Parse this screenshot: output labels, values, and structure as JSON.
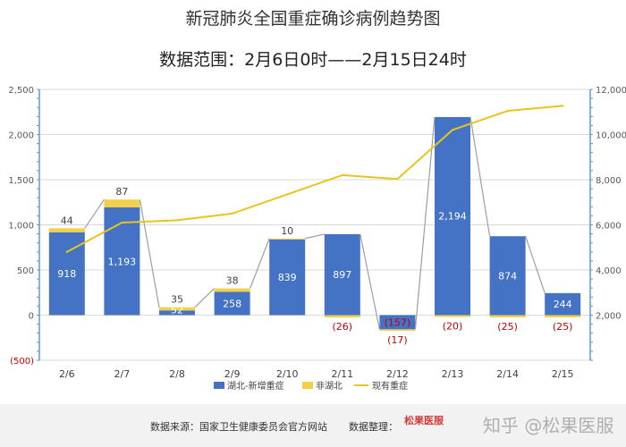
{
  "page": {
    "title": "新冠肺炎全国重症确诊病例趋势图",
    "subtitle": "数据范围：2月6日0时——2月15日24时",
    "footer": {
      "source": "数据来源：国家卫生健康委员会官方网站",
      "compiled_by": "数据整理：",
      "logo_text": "松果医服",
      "watermark": "知乎 @松果医服"
    }
  },
  "chart_data": {
    "type": "bar",
    "categories": [
      "2/6",
      "2/7",
      "2/8",
      "2/9",
      "2/10",
      "2/11",
      "2/12",
      "2/13",
      "2/14",
      "2/15"
    ],
    "series": [
      {
        "name": "湖北-新增重症",
        "type": "bar",
        "axis": "left",
        "color": "#4472c4",
        "values": [
          918,
          1193,
          52,
          258,
          839,
          897,
          -157,
          2194,
          874,
          244
        ],
        "labels": [
          "918",
          "1,193",
          "52",
          "258",
          "839",
          "897",
          "(157)",
          "2,194",
          "874",
          "244"
        ]
      },
      {
        "name": "非湖北",
        "type": "bar",
        "axis": "left",
        "color": "#f4d04a",
        "stacked": true,
        "values": [
          44,
          87,
          35,
          38,
          10,
          -26,
          -17,
          -20,
          -25,
          -25
        ],
        "labels": [
          "44",
          "87",
          "35",
          "38",
          "10",
          "(26)",
          "(17)",
          "(20)",
          "(25)",
          "(25)"
        ]
      },
      {
        "name": "现有重症",
        "type": "line",
        "axis": "right",
        "color": "#e8c51d",
        "values": [
          4800,
          6100,
          6200,
          6500,
          7350,
          8200,
          8030,
          10200,
          11050,
          11270
        ]
      }
    ],
    "left_axis": {
      "ylim": [
        -500,
        2500
      ],
      "ticks": [
        -500,
        0,
        500,
        1000,
        1500,
        2000,
        2500
      ],
      "tick_labels": [
        "(500)",
        "0",
        "500",
        "1,000",
        "1,500",
        "2,000",
        "2,500"
      ]
    },
    "right_axis": {
      "ylim": [
        0,
        12000
      ],
      "ticks": [
        2000,
        4000,
        6000,
        8000,
        10000,
        12000
      ],
      "tick_labels": [
        "2,000",
        "4,000",
        "6,000",
        "8,000",
        "10,000",
        "12,000"
      ]
    },
    "legend": {
      "placement": "bottom-center",
      "entries": [
        "湖北-新增重症",
        "非湖北",
        "现有重症"
      ]
    },
    "grid": true,
    "connector_lines": true
  }
}
